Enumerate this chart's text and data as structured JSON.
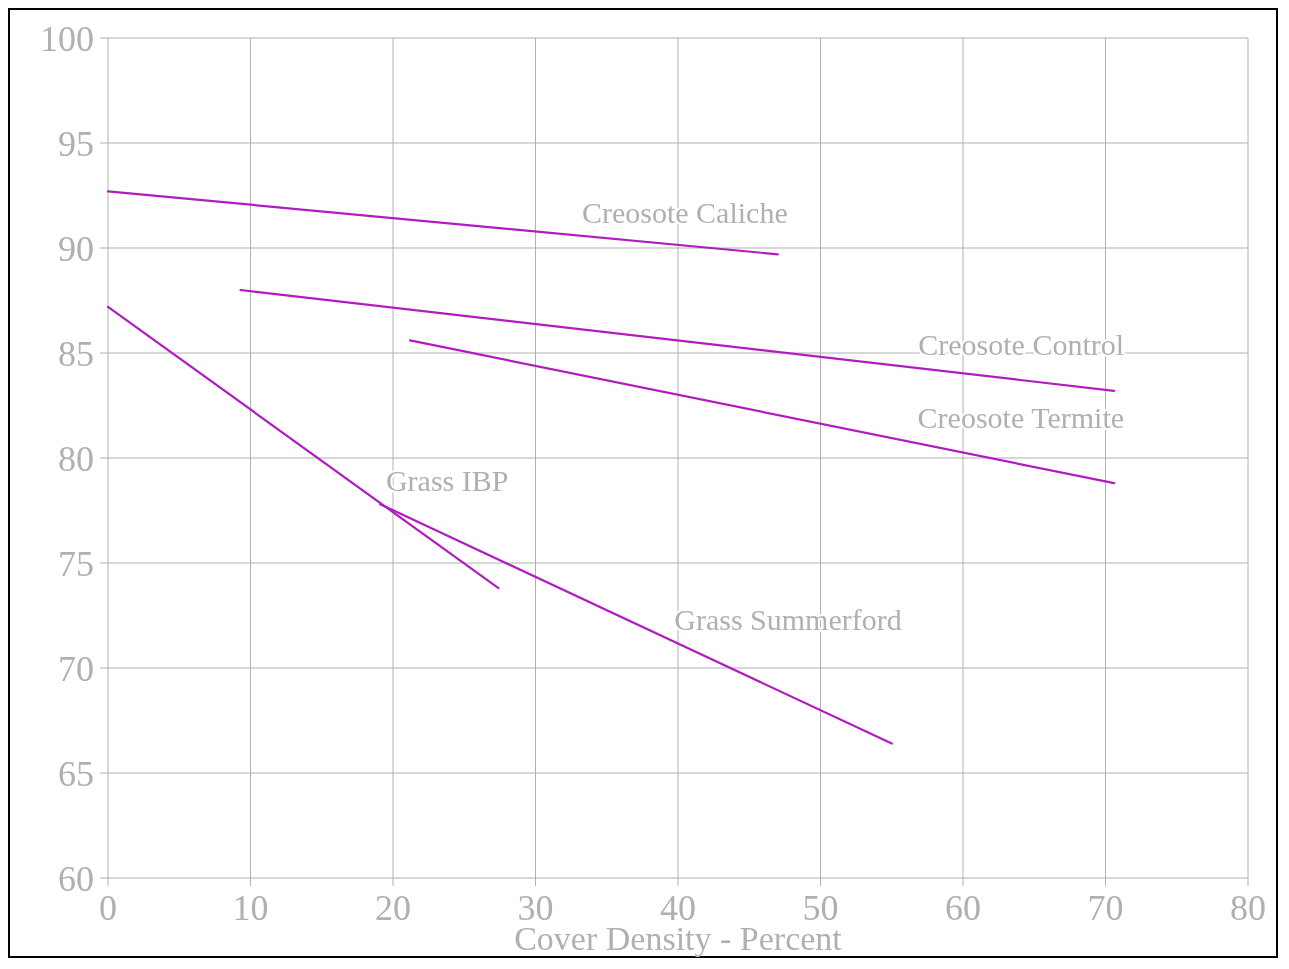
{
  "chart_data": {
    "type": "line",
    "xlabel": "Cover Density - Percent",
    "xlim": [
      0,
      80
    ],
    "xticks": [
      0,
      10,
      20,
      30,
      40,
      50,
      60,
      70,
      80
    ],
    "ylim": [
      60,
      100
    ],
    "yticks": [
      60,
      65,
      70,
      75,
      80,
      85,
      90,
      95,
      100
    ],
    "grid": true,
    "line_style": "solid",
    "marker": "none",
    "series": [
      {
        "name": "Creosote Caliche",
        "color": "#b01cc0",
        "x": [
          0,
          47
        ],
        "values": [
          92.7,
          89.7
        ]
      },
      {
        "name": "Creosote Control",
        "color": "#b01cc0",
        "x": [
          9.3,
          70.6
        ],
        "values": [
          88.0,
          83.2
        ]
      },
      {
        "name": "Creosote Termite",
        "color": "#b01cc0",
        "x": [
          21.2,
          70.6
        ],
        "values": [
          85.6,
          78.8
        ]
      },
      {
        "name": "Grass IBP",
        "color": "#b01cc0",
        "x": [
          0,
          27.4
        ],
        "values": [
          87.2,
          73.8
        ]
      },
      {
        "name": "Grass Summerford",
        "color": "#b01cc0",
        "x": [
          19.1,
          55
        ],
        "values": [
          77.8,
          66.4
        ]
      }
    ]
  }
}
